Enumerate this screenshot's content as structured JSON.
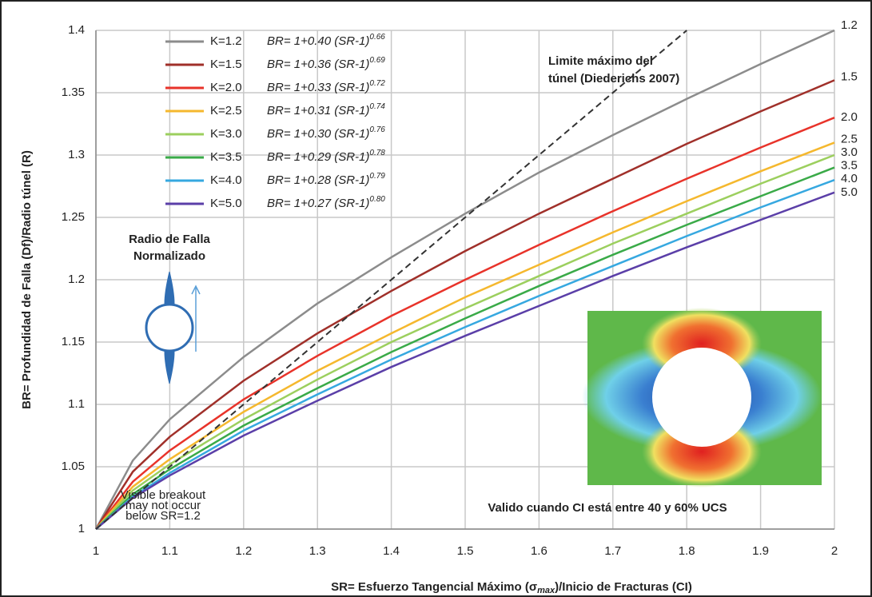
{
  "chart_data": {
    "type": "line",
    "x_label": [
      "SR= Esfuerzo Tangencial Máximo (σ",
      "max",
      ")/Inicio de Fracturas (CI)"
    ],
    "y_label": "BR= Profundidad de Falla (Df)/Radio túnel (R)",
    "x": [
      1,
      1.05,
      1.1,
      1.2,
      1.3,
      1.4,
      1.5,
      1.6,
      1.7,
      1.8,
      1.9,
      2
    ],
    "series": [
      {
        "name": "K=1.2",
        "formula": "BR= 1+0.40 (SR-1)",
        "exponent": "0.66",
        "end_label": "1.2",
        "color": "#8c8c8c",
        "values": [
          1,
          1.055,
          1.088,
          1.138,
          1.181,
          1.218,
          1.253,
          1.286,
          1.316,
          1.345,
          1.373,
          1.4
        ]
      },
      {
        "name": "K=1.5",
        "formula": "BR= 1+0.36 (SR-1)",
        "exponent": "0.69",
        "end_label": "1.5",
        "color": "#a0302a",
        "values": [
          1,
          1.046,
          1.074,
          1.119,
          1.157,
          1.191,
          1.223,
          1.253,
          1.281,
          1.309,
          1.335,
          1.36
        ]
      },
      {
        "name": "K=2.0",
        "formula": "BR= 1+0.33 (SR-1)",
        "exponent": "0.72",
        "end_label": "2.0",
        "color": "#e8332a",
        "values": [
          1,
          1.038,
          1.063,
          1.104,
          1.139,
          1.171,
          1.2,
          1.228,
          1.255,
          1.281,
          1.306,
          1.33
        ]
      },
      {
        "name": "K=2.5",
        "formula": "BR= 1+0.31 (SR-1)",
        "exponent": "0.74",
        "end_label": "2.5",
        "color": "#f5b82e",
        "values": [
          1,
          1.034,
          1.056,
          1.094,
          1.127,
          1.157,
          1.186,
          1.212,
          1.238,
          1.263,
          1.287,
          1.31
        ]
      },
      {
        "name": "K=3.0",
        "formula": "BR= 1+0.30 (SR-1)",
        "exponent": "0.76",
        "end_label": "3.0",
        "color": "#9ccf5e",
        "values": [
          1,
          1.031,
          1.052,
          1.088,
          1.12,
          1.15,
          1.177,
          1.203,
          1.229,
          1.253,
          1.277,
          1.3
        ]
      },
      {
        "name": "K=3.5",
        "formula": "BR= 1+0.29 (SR-1)",
        "exponent": "0.78",
        "end_label": "3.5",
        "color": "#3aaa48",
        "values": [
          1,
          1.028,
          1.048,
          1.083,
          1.113,
          1.142,
          1.169,
          1.195,
          1.22,
          1.244,
          1.267,
          1.29
        ]
      },
      {
        "name": "K=4.0",
        "formula": "BR= 1+0.28 (SR-1)",
        "exponent": "0.79",
        "end_label": "4.0",
        "color": "#36a8e0",
        "values": [
          1,
          1.026,
          1.045,
          1.079,
          1.108,
          1.136,
          1.162,
          1.187,
          1.211,
          1.235,
          1.258,
          1.28
        ]
      },
      {
        "name": "K=5.0",
        "formula": "BR= 1+0.27 (SR-1)",
        "exponent": "0.80",
        "end_label": "5.0",
        "color": "#5b3fa8",
        "values": [
          1,
          1.025,
          1.043,
          1.075,
          1.103,
          1.13,
          1.155,
          1.179,
          1.203,
          1.226,
          1.248,
          1.27
        ]
      }
    ],
    "limit_line": {
      "label": [
        "Limite máximo del",
        "túnel (Diederichs 2007)"
      ],
      "color": "#333333",
      "x": [
        1,
        1.8
      ],
      "values": [
        1,
        1.4
      ]
    },
    "annotations": {
      "failure_radius": [
        "Radio de Falla",
        "Normalizado"
      ],
      "breakout": [
        "Visible breakout",
        "may not occur",
        "below SR=1.2"
      ],
      "validity": "Valido cuando CI está entre 40 y 60% UCS"
    },
    "xlim": [
      1,
      2
    ],
    "xticks": [
      1,
      1.1,
      1.2,
      1.3,
      1.4,
      1.5,
      1.6,
      1.7,
      1.8,
      1.9,
      2
    ],
    "ylim": [
      1,
      1.4
    ],
    "yticks": [
      1,
      1.05,
      1.1,
      1.15,
      1.2,
      1.25,
      1.3,
      1.35,
      1.4
    ],
    "grid": true
  }
}
